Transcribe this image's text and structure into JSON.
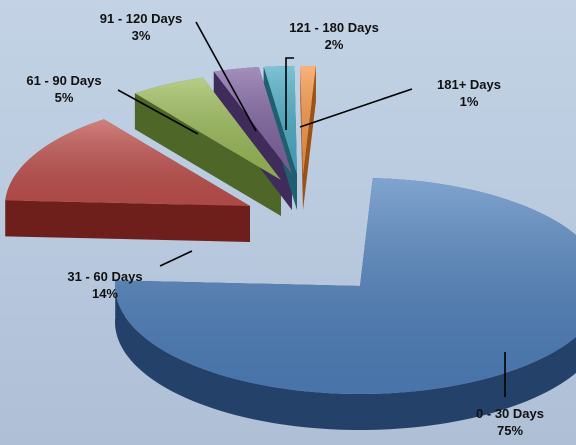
{
  "chart_data": {
    "type": "pie",
    "title": "",
    "series": [
      {
        "label": "0 - 30 Days",
        "percent_label": "75%",
        "value": 75,
        "color": "#4f81bd",
        "side": "#24416a"
      },
      {
        "label": "31 - 60 Days",
        "percent_label": "14%",
        "value": 14,
        "color": "#c0504d",
        "side": "#6e1f1c"
      },
      {
        "label": "61 - 90 Days",
        "percent_label": "5%",
        "value": 5,
        "color": "#9bbb59",
        "side": "#4e6628"
      },
      {
        "label": "91 - 120 Days",
        "percent_label": "3%",
        "value": 3,
        "color": "#8064a2",
        "side": "#3f2c5a"
      },
      {
        "label": "121 - 180 Days",
        "percent_label": "2%",
        "value": 2,
        "color": "#4bacc6",
        "side": "#1f5f70"
      },
      {
        "label": "181+ Days",
        "percent_label": "1%",
        "value": 1,
        "color": "#f79646",
        "side": "#9a5216"
      }
    ],
    "style": "3d-exploded-pie",
    "legend": "none",
    "data_labels": "outside-with-leader-lines"
  }
}
